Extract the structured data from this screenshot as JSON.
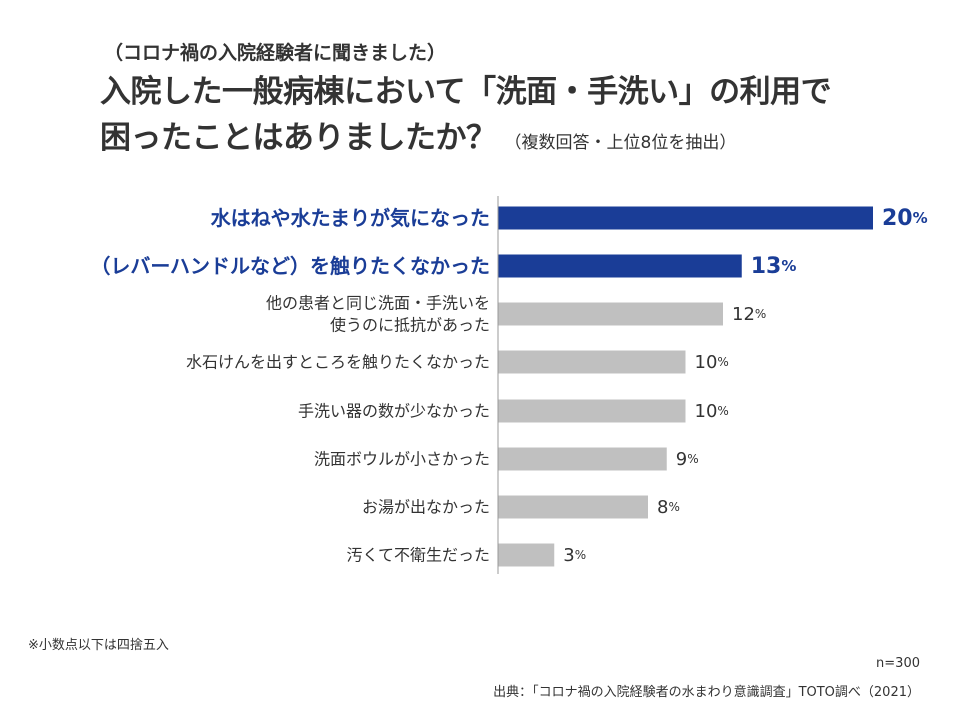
{
  "header": {
    "subtitle": "（コロナ禍の入院経験者に聞きました）",
    "title_line1": "入院した一般病棟において「洗面・手洗い」の利用で",
    "title_line2": "困ったことはありましたか？",
    "title_note": "（複数回答・上位8位を抽出）"
  },
  "chart_data": {
    "type": "bar",
    "orientation": "horizontal",
    "categories": [
      [
        "水はねや水たまりが気になった"
      ],
      [
        "（レバーハンドルなど）を触りたくなかった"
      ],
      [
        "他の患者と同じ洗面・手洗いを",
        "使うのに抵抗があった"
      ],
      [
        "水石けんを出すところを触りたくなかった"
      ],
      [
        "手洗い器の数が少なかった"
      ],
      [
        "洗面ボウルが小さかった"
      ],
      [
        "お湯が出なかった"
      ],
      [
        "汚くて不衛生だった"
      ]
    ],
    "values": [
      20,
      13,
      12,
      10,
      10,
      9,
      8,
      3
    ],
    "unit": "%",
    "highlight_count": 2,
    "colors": {
      "highlight": "#1a3d97",
      "normal": "#c0c0c0",
      "axis": "#999999",
      "label": "#333333"
    }
  },
  "footer": {
    "footnote": "※小数点以下は四捨五入",
    "sample_size": "n=300",
    "source": "出典：「コロナ禍の入院経験者の水まわり意識調査」TOTO調べ（2021）"
  }
}
